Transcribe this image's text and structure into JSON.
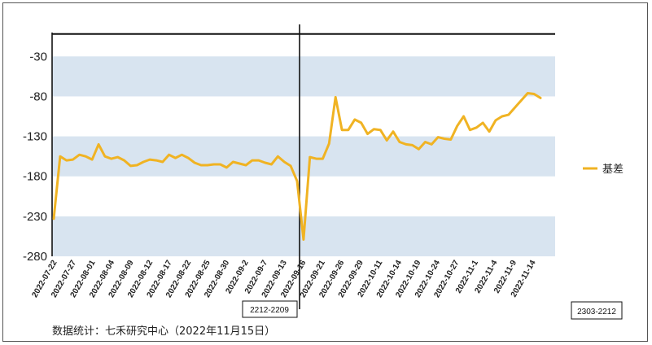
{
  "source_note": "数据统计：七禾研究中心（2022年11月15日）",
  "chart_data": {
    "type": "line",
    "ylim": [
      -280,
      10
    ],
    "yticks": [
      -30,
      -80,
      -130,
      -180,
      -230,
      -280
    ],
    "legend": {
      "position": "right",
      "entries": [
        "基差"
      ]
    },
    "colors": {
      "line": "#F0B323",
      "band": "#D8E4F0",
      "axis": "#111111"
    },
    "contract_labels": [
      "2212-2209",
      "2303-2212"
    ],
    "xtick_labels": [
      "2022-07-22",
      "2022-07-27",
      "2022-08-01",
      "2022-08-04",
      "2022-08-09",
      "2022-08-12",
      "2022-08-17",
      "2022-08-22",
      "2022-08-25",
      "2022-08-30",
      "2022-09-2",
      "2022-09-7",
      "2022-09-13",
      "2022-09-16",
      "2022-09-21",
      "2022-09-26",
      "2022-09-29",
      "2022-10-11",
      "2022-10-14",
      "2022-10-19",
      "2022-10-24",
      "2022-10-27",
      "2022-11-1",
      "2022-11-4",
      "2022-11-9",
      "2022-11-14"
    ],
    "series": [
      {
        "name": "基差",
        "values": [
          -233,
          -155,
          -160,
          -159,
          -153,
          -155,
          -159,
          -140,
          -155,
          -158,
          -156,
          -160,
          -167,
          -166,
          -162,
          -159,
          -160,
          -162,
          -153,
          -157,
          -153,
          -157,
          -163,
          -166,
          -166,
          -165,
          -165,
          -169,
          -162,
          -164,
          -166,
          -160,
          -160,
          -163,
          -165,
          -155,
          -162,
          -167,
          -186,
          -259,
          -156,
          -158,
          -158,
          -139,
          -81,
          -122,
          -122,
          -109,
          -113,
          -127,
          -121,
          -122,
          -135,
          -124,
          -137,
          -140,
          -141,
          -146,
          -137,
          -140,
          -131,
          -133,
          -134,
          -117,
          -105,
          -122,
          -119,
          -113,
          -124,
          -110,
          -105,
          -103,
          -94,
          -85,
          -76,
          -77,
          -82
        ]
      }
    ]
  }
}
